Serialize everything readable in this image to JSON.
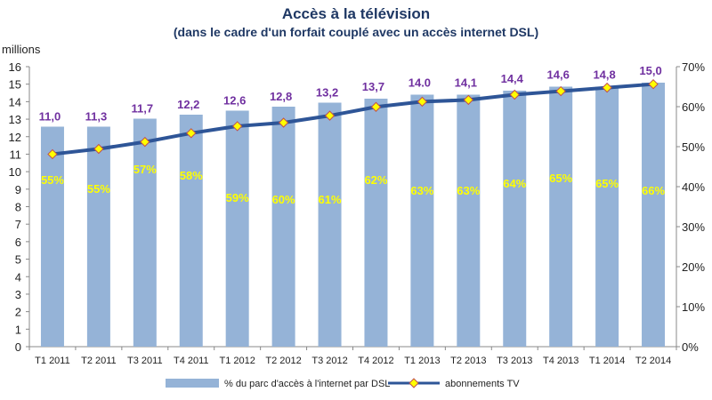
{
  "chart_data": {
    "type": "bar+line",
    "title": "Accès à la télévision",
    "subtitle": "(dans le cadre d'un forfait couplé avec un accès internet DSL)",
    "ylabel_left": "millions",
    "ylim_left": [
      0,
      16
    ],
    "ylim_right": [
      0,
      70
    ],
    "right_tick_labels": [
      "0%",
      "10%",
      "20%",
      "30%",
      "40%",
      "50%",
      "60%",
      "70%"
    ],
    "categories": [
      "T1 2011",
      "T2 2011",
      "T3 2011",
      "T4 2011",
      "T1 2012",
      "T2 2012",
      "T3 2012",
      "T4 2012",
      "T1 2013",
      "T2 2013",
      "T3 2013",
      "T4 2013",
      "T1 2014",
      "T2 2014"
    ],
    "series": [
      {
        "name": "% du parc d'accès à l'internet par DSL",
        "type": "bar",
        "axis": "right",
        "color": "#95b3d7",
        "values": [
          55,
          55,
          57,
          58,
          59,
          60,
          61,
          62,
          63,
          63,
          64,
          65,
          65,
          66
        ],
        "labels": [
          "55%",
          "55%",
          "57%",
          "58%",
          "59%",
          "60%",
          "61%",
          "62%",
          "63%",
          "63%",
          "64%",
          "65%",
          "65%",
          "66%"
        ]
      },
      {
        "name": "abonnements TV",
        "type": "line",
        "axis": "left",
        "color": "#2e5597",
        "marker_color": "#ffff00",
        "values": [
          11.0,
          11.3,
          11.7,
          12.2,
          12.6,
          12.8,
          13.2,
          13.7,
          14.0,
          14.1,
          14.4,
          14.6,
          14.8,
          15.0
        ],
        "labels": [
          "11,0",
          "11,3",
          "11,7",
          "12,2",
          "12,6",
          "12,8",
          "13,2",
          "13,7",
          "14.0",
          "14,1",
          "14,4",
          "14,6",
          "14,8",
          "15,0"
        ]
      }
    ],
    "label_colors": {
      "line": "#7030a0",
      "bar": "#ffff00"
    },
    "legend_position": "bottom",
    "grid": false
  }
}
